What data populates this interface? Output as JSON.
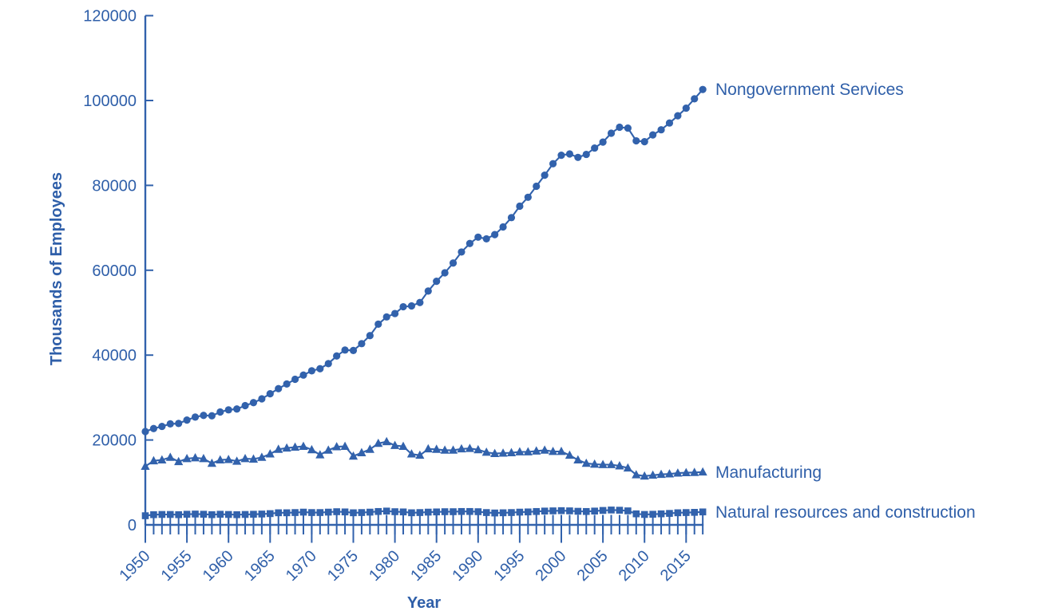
{
  "chart_data": {
    "type": "line",
    "title": "",
    "xlabel": "Year",
    "ylabel": "Thousands of Employees",
    "ylim": [
      0,
      120000
    ],
    "xlim": [
      1950,
      2017
    ],
    "grid": false,
    "legend_position": "right-end-of-line-labels",
    "y_ticks": [
      0,
      20000,
      40000,
      60000,
      80000,
      100000,
      120000
    ],
    "y_tick_labels": [
      "0",
      "20000",
      "40000",
      "60000",
      "80000",
      "100000",
      "120000"
    ],
    "x_major_ticks": [
      1950,
      1955,
      1960,
      1965,
      1970,
      1975,
      1980,
      1985,
      1990,
      1995,
      2000,
      2005,
      2010,
      2015
    ],
    "x_tick_labels": [
      "1950",
      "1955",
      "1960",
      "1965",
      "1970",
      "1975",
      "1980",
      "1985",
      "1990",
      "1995",
      "2000",
      "2005",
      "2010",
      "2015"
    ],
    "x": [
      1950,
      1951,
      1952,
      1953,
      1954,
      1955,
      1956,
      1957,
      1958,
      1959,
      1960,
      1961,
      1962,
      1963,
      1964,
      1965,
      1966,
      1967,
      1968,
      1969,
      1970,
      1971,
      1972,
      1973,
      1974,
      1975,
      1976,
      1977,
      1978,
      1979,
      1980,
      1981,
      1982,
      1983,
      1984,
      1985,
      1986,
      1987,
      1988,
      1989,
      1990,
      1991,
      1992,
      1993,
      1994,
      1995,
      1996,
      1997,
      1998,
      1999,
      2000,
      2001,
      2002,
      2003,
      2004,
      2005,
      2006,
      2007,
      2008,
      2009,
      2010,
      2011,
      2012,
      2013,
      2014,
      2015,
      2016,
      2017
    ],
    "series": [
      {
        "name": "Nongovernment Services",
        "marker": "circle",
        "values": [
          22000,
          22700,
          23200,
          23800,
          23900,
          24700,
          25400,
          25800,
          25700,
          26600,
          27100,
          27300,
          28100,
          28800,
          29700,
          30900,
          32100,
          33200,
          34300,
          35300,
          36300,
          36800,
          38000,
          39800,
          41200,
          41100,
          42700,
          44600,
          47300,
          49000,
          49800,
          51400,
          51600,
          52400,
          55100,
          57400,
          59400,
          61700,
          64300,
          66300,
          67800,
          67400,
          68400,
          70200,
          72400,
          75100,
          77200,
          79800,
          82400,
          85100,
          87100,
          87400,
          86600,
          87300,
          88800,
          90200,
          92300,
          93700,
          93500,
          90500,
          90300,
          91900,
          93100,
          94700,
          96400,
          98200,
          100400,
          102600
        ]
      },
      {
        "name": "Manufacturing",
        "marker": "triangle",
        "values": [
          13800,
          15100,
          15300,
          15900,
          14900,
          15600,
          15800,
          15600,
          14500,
          15300,
          15400,
          15000,
          15600,
          15500,
          15900,
          16700,
          17800,
          18100,
          18300,
          18500,
          17700,
          16500,
          17600,
          18400,
          18500,
          16200,
          17000,
          17800,
          19200,
          19600,
          18700,
          18500,
          16700,
          16400,
          17900,
          17800,
          17600,
          17600,
          17900,
          18000,
          17700,
          17100,
          16800,
          16900,
          17000,
          17200,
          17200,
          17400,
          17600,
          17300,
          17300,
          16400,
          15300,
          14500,
          14300,
          14200,
          14200,
          13900,
          13400,
          11800,
          11500,
          11700,
          11900,
          12000,
          12200,
          12300,
          12350,
          12450
        ]
      },
      {
        "name": "Natural resources and construction",
        "marker": "square",
        "values": [
          2150,
          2400,
          2450,
          2450,
          2400,
          2500,
          2550,
          2500,
          2400,
          2500,
          2450,
          2400,
          2450,
          2500,
          2550,
          2650,
          2850,
          2850,
          2900,
          3000,
          2900,
          2900,
          3000,
          3100,
          3050,
          2850,
          2900,
          3000,
          3150,
          3250,
          3100,
          3050,
          2850,
          2900,
          3000,
          3050,
          3100,
          3100,
          3150,
          3150,
          3100,
          2900,
          2800,
          2850,
          2900,
          3000,
          3050,
          3150,
          3250,
          3300,
          3350,
          3300,
          3200,
          3150,
          3250,
          3400,
          3500,
          3450,
          3300,
          2600,
          2450,
          2500,
          2600,
          2700,
          2850,
          2900,
          2950,
          3050
        ]
      }
    ],
    "colors": {
      "line": "#3262ac",
      "marker": "#3262ac",
      "text": "#2f5fa9",
      "axis": "#3262ac",
      "background": "#ffffff"
    }
  }
}
